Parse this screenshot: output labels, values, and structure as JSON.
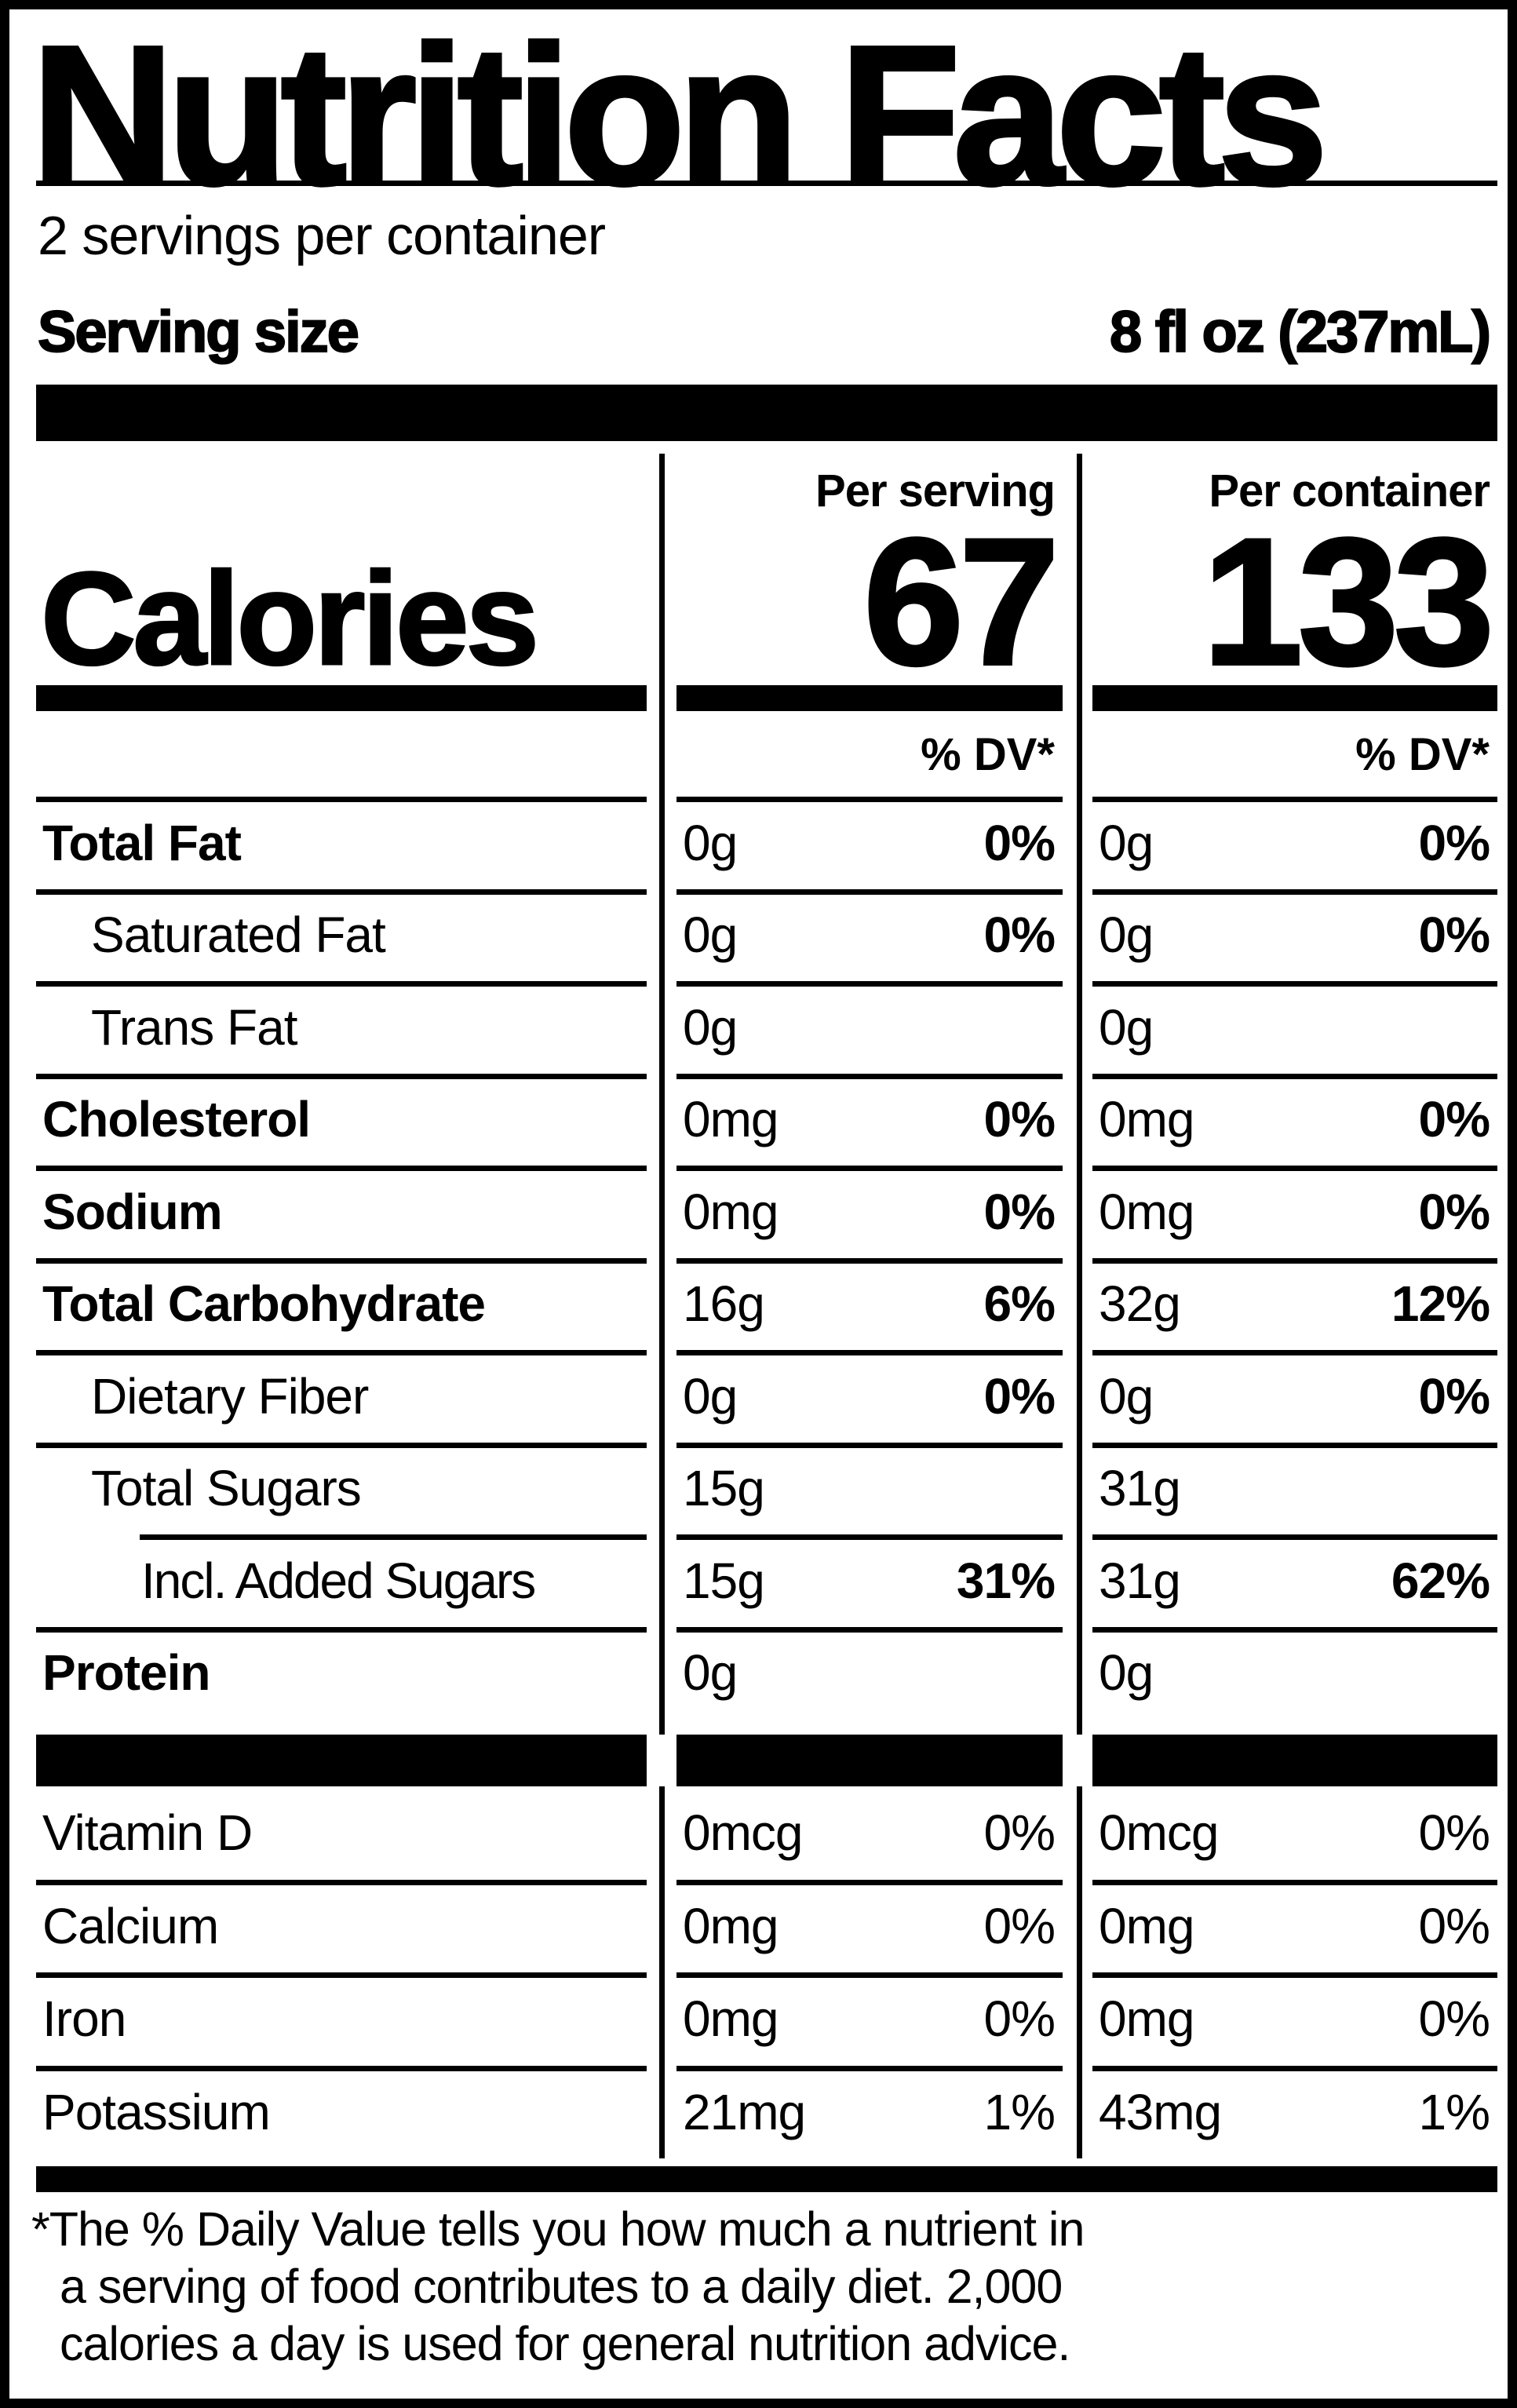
{
  "colors": {
    "ink": "#000000",
    "background": "#ffffff"
  },
  "label": {
    "title": "Nutrition Facts",
    "servings_per_container": "2 servings per container",
    "serving_size_label": "Serving size",
    "serving_size_value": "8 fl oz (237mL)",
    "calories": {
      "word": "Calories",
      "per_serving_header": "Per serving",
      "per_container_header": "Per container",
      "per_serving_value": "67",
      "per_container_value": "133"
    },
    "dv_header_serving": "% DV*",
    "dv_header_container": "% DV*",
    "rows": [
      {
        "label": "Total Fat",
        "serving": {
          "amount": "0g",
          "dv": "0%"
        },
        "container": {
          "amount": "0g",
          "dv": "0%"
        }
      },
      {
        "label": "Saturated Fat",
        "serving": {
          "amount": "0g",
          "dv": "0%"
        },
        "container": {
          "amount": "0g",
          "dv": "0%"
        }
      },
      {
        "label": "Trans Fat",
        "serving": {
          "amount": "0g",
          "dv": ""
        },
        "container": {
          "amount": "0g",
          "dv": ""
        }
      },
      {
        "label": "Cholesterol",
        "serving": {
          "amount": "0mg",
          "dv": "0%"
        },
        "container": {
          "amount": "0mg",
          "dv": "0%"
        }
      },
      {
        "label": "Sodium",
        "serving": {
          "amount": "0mg",
          "dv": "0%"
        },
        "container": {
          "amount": "0mg",
          "dv": "0%"
        }
      },
      {
        "label": "Total Carbohydrate",
        "serving": {
          "amount": "16g",
          "dv": "6%"
        },
        "container": {
          "amount": "32g",
          "dv": "12%"
        }
      },
      {
        "label": "Dietary Fiber",
        "serving": {
          "amount": "0g",
          "dv": "0%"
        },
        "container": {
          "amount": "0g",
          "dv": "0%"
        }
      },
      {
        "label": "Total Sugars",
        "serving": {
          "amount": "15g",
          "dv": ""
        },
        "container": {
          "amount": "31g",
          "dv": ""
        }
      },
      {
        "label": "Incl. Added Sugars",
        "serving": {
          "amount": "15g",
          "dv": "31%"
        },
        "container": {
          "amount": "31g",
          "dv": "62%"
        }
      },
      {
        "label": "Protein",
        "serving": {
          "amount": "0g",
          "dv": ""
        },
        "container": {
          "amount": "0g",
          "dv": ""
        }
      },
      {
        "label": "Vitamin D",
        "serving": {
          "amount": "0mcg",
          "dv": "0%"
        },
        "container": {
          "amount": "0mcg",
          "dv": "0%"
        }
      },
      {
        "label": "Calcium",
        "serving": {
          "amount": "0mg",
          "dv": "0%"
        },
        "container": {
          "amount": "0mg",
          "dv": "0%"
        }
      },
      {
        "label": "Iron",
        "serving": {
          "amount": "0mg",
          "dv": "0%"
        },
        "container": {
          "amount": "0mg",
          "dv": "0%"
        }
      },
      {
        "label": "Potassium",
        "serving": {
          "amount": "21mg",
          "dv": "1%"
        },
        "container": {
          "amount": "43mg",
          "dv": "1%"
        }
      }
    ],
    "footnote_lines": [
      "*The % Daily Value tells you how much a nutrient in",
      "a serving of food contributes to a daily diet. 2,000",
      "calories a day is used for general nutrition advice."
    ]
  }
}
